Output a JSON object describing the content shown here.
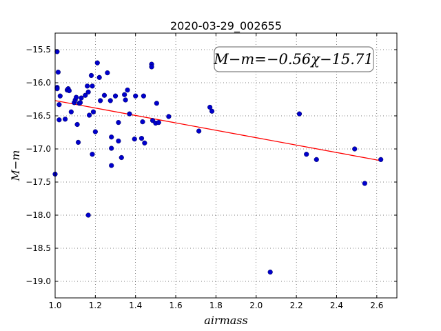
{
  "chart_data": {
    "type": "scatter",
    "title": "2020-03-29_002655",
    "xlabel": "airmass",
    "ylabel": "M−m",
    "xlim": [
      1.0,
      2.7
    ],
    "ylim": [
      -15.25,
      -19.25
    ],
    "y_inverted": true,
    "xticks": [
      1.0,
      1.2,
      1.4,
      1.6,
      1.8,
      2.0,
      2.2,
      2.4,
      2.6
    ],
    "xtick_labels": [
      "1.0",
      "1.2",
      "1.4",
      "1.6",
      "1.8",
      "2.0",
      "2.2",
      "2.4",
      "2.6"
    ],
    "yticks": [
      -15.5,
      -16.0,
      -16.5,
      -17.0,
      -17.5,
      -18.0,
      -18.5,
      -19.0
    ],
    "ytick_labels": [
      "−15.5",
      "−16.0",
      "−16.5",
      "−17.0",
      "−17.5",
      "−18.0",
      "−18.5",
      "−19.0"
    ],
    "grid": true,
    "annotation": "M−m=−0.56χ−15.71",
    "fit": {
      "slope": -0.56,
      "intercept": -15.71,
      "x_range": [
        1.0,
        2.62
      ],
      "color": "#ff0000"
    },
    "marker_color": "#0000cc",
    "points": [
      [
        1.0,
        -17.38
      ],
      [
        1.01,
        -15.53
      ],
      [
        1.01,
        -16.07
      ],
      [
        1.01,
        -16.09
      ],
      [
        1.015,
        -15.84
      ],
      [
        1.02,
        -16.33
      ],
      [
        1.02,
        -16.56
      ],
      [
        1.025,
        -16.2
      ],
      [
        1.05,
        -16.55
      ],
      [
        1.06,
        -16.11
      ],
      [
        1.065,
        -16.09
      ],
      [
        1.07,
        -16.12
      ],
      [
        1.08,
        -16.44
      ],
      [
        1.095,
        -16.3
      ],
      [
        1.1,
        -16.26
      ],
      [
        1.105,
        -16.22
      ],
      [
        1.11,
        -16.63
      ],
      [
        1.115,
        -16.9
      ],
      [
        1.12,
        -16.31
      ],
      [
        1.125,
        -16.3
      ],
      [
        1.13,
        -16.23
      ],
      [
        1.15,
        -16.19
      ],
      [
        1.16,
        -16.05
      ],
      [
        1.165,
        -16.14
      ],
      [
        1.17,
        -16.49
      ],
      [
        1.165,
        -18.0
      ],
      [
        1.18,
        -15.89
      ],
      [
        1.185,
        -16.05
      ],
      [
        1.185,
        -17.08
      ],
      [
        1.19,
        -16.44
      ],
      [
        1.2,
        -16.74
      ],
      [
        1.21,
        -15.7
      ],
      [
        1.22,
        -15.92
      ],
      [
        1.225,
        -16.27
      ],
      [
        1.245,
        -16.19
      ],
      [
        1.26,
        -15.85
      ],
      [
        1.275,
        -16.27
      ],
      [
        1.28,
        -16.82
      ],
      [
        1.28,
        -16.99
      ],
      [
        1.28,
        -17.25
      ],
      [
        1.3,
        -16.2
      ],
      [
        1.315,
        -16.6
      ],
      [
        1.315,
        -16.88
      ],
      [
        1.33,
        -17.13
      ],
      [
        1.345,
        -16.18
      ],
      [
        1.35,
        -16.26
      ],
      [
        1.36,
        -16.11
      ],
      [
        1.37,
        -16.47
      ],
      [
        1.395,
        -16.85
      ],
      [
        1.4,
        -16.2
      ],
      [
        1.43,
        -16.84
      ],
      [
        1.435,
        -16.59
      ],
      [
        1.44,
        -16.2
      ],
      [
        1.445,
        -16.91
      ],
      [
        1.48,
        -15.72
      ],
      [
        1.48,
        -15.76
      ],
      [
        1.485,
        -16.57
      ],
      [
        1.5,
        -16.61
      ],
      [
        1.505,
        -16.31
      ],
      [
        1.515,
        -16.6
      ],
      [
        1.565,
        -16.51
      ],
      [
        1.715,
        -16.73
      ],
      [
        1.77,
        -16.37
      ],
      [
        1.78,
        -16.43
      ],
      [
        2.07,
        -18.86
      ],
      [
        2.215,
        -16.47
      ],
      [
        2.25,
        -17.08
      ],
      [
        2.3,
        -17.16
      ],
      [
        2.49,
        -17.0
      ],
      [
        2.54,
        -17.52
      ],
      [
        2.62,
        -17.16
      ]
    ]
  }
}
